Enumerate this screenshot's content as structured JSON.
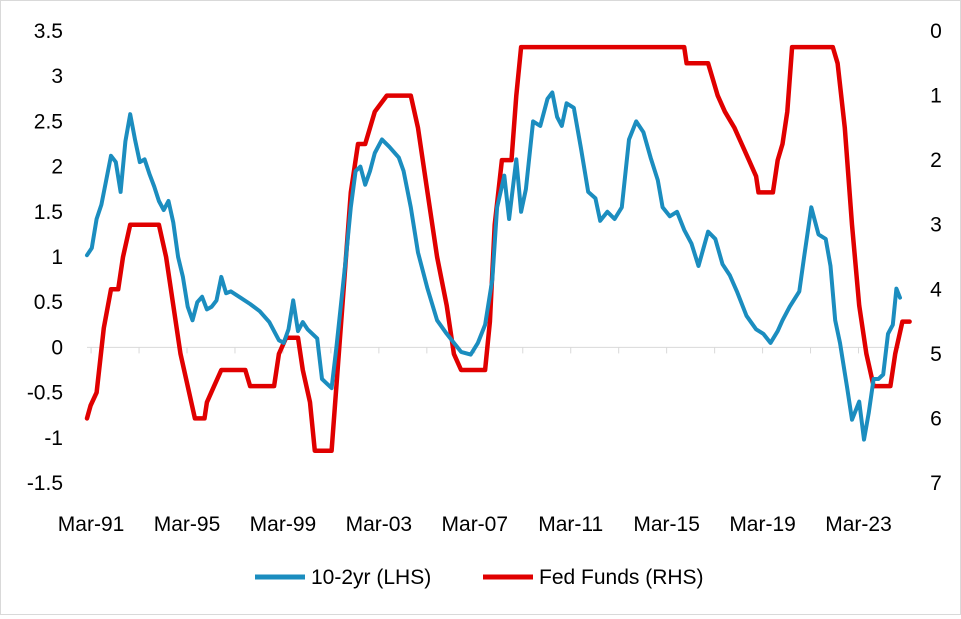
{
  "chart_data": {
    "type": "line",
    "title": "",
    "xlabel": "",
    "ylabel": "",
    "grid": false,
    "legend_position": "bottom",
    "x_tick_labels": [
      "Mar-91",
      "Mar-95",
      "Mar-99",
      "Mar-03",
      "Mar-07",
      "Mar-11",
      "Mar-15",
      "Mar-19",
      "Mar-23"
    ],
    "x_range": [
      1991.0,
      2024.9
    ],
    "left_axis": {
      "ylim": [
        -1.5,
        3.5
      ],
      "ticks": [
        "3.5",
        "3",
        "2.5",
        "2",
        "1.5",
        "1",
        "0.5",
        "0",
        "-0.5",
        "-1",
        "-1.5"
      ]
    },
    "right_axis": {
      "ylim": [
        0,
        7
      ],
      "inverted": true,
      "ticks": [
        "0",
        "1",
        "2",
        "3",
        "4",
        "5",
        "6",
        "7"
      ]
    },
    "series": [
      {
        "name": "10-2yr (LHS)",
        "axis": "left",
        "color": "#1B8DBF",
        "points": [
          [
            1991.0,
            1.02
          ],
          [
            1991.2,
            1.1
          ],
          [
            1991.4,
            1.42
          ],
          [
            1991.6,
            1.58
          ],
          [
            1991.8,
            1.85
          ],
          [
            1992.0,
            2.12
          ],
          [
            1992.2,
            2.05
          ],
          [
            1992.4,
            1.72
          ],
          [
            1992.6,
            2.28
          ],
          [
            1992.8,
            2.58
          ],
          [
            1993.0,
            2.3
          ],
          [
            1993.2,
            2.05
          ],
          [
            1993.4,
            2.08
          ],
          [
            1993.6,
            1.92
          ],
          [
            1993.8,
            1.78
          ],
          [
            1994.0,
            1.62
          ],
          [
            1994.2,
            1.52
          ],
          [
            1994.4,
            1.62
          ],
          [
            1994.6,
            1.38
          ],
          [
            1994.8,
            1.0
          ],
          [
            1995.0,
            0.78
          ],
          [
            1995.2,
            0.45
          ],
          [
            1995.4,
            0.3
          ],
          [
            1995.6,
            0.5
          ],
          [
            1995.8,
            0.56
          ],
          [
            1996.0,
            0.42
          ],
          [
            1996.2,
            0.45
          ],
          [
            1996.4,
            0.52
          ],
          [
            1996.6,
            0.78
          ],
          [
            1996.8,
            0.6
          ],
          [
            1997.0,
            0.62
          ],
          [
            1997.4,
            0.55
          ],
          [
            1997.8,
            0.48
          ],
          [
            1998.2,
            0.4
          ],
          [
            1998.6,
            0.28
          ],
          [
            1999.0,
            0.08
          ],
          [
            1999.2,
            0.05
          ],
          [
            1999.4,
            0.2
          ],
          [
            1999.6,
            0.52
          ],
          [
            1999.8,
            0.18
          ],
          [
            2000.0,
            0.28
          ],
          [
            2000.2,
            0.2
          ],
          [
            2000.6,
            0.1
          ],
          [
            2000.8,
            -0.35
          ],
          [
            2001.0,
            -0.4
          ],
          [
            2001.2,
            -0.45
          ],
          [
            2001.4,
            0.0
          ],
          [
            2001.6,
            0.5
          ],
          [
            2001.8,
            1.0
          ],
          [
            2002.0,
            1.55
          ],
          [
            2002.2,
            1.95
          ],
          [
            2002.4,
            2.0
          ],
          [
            2002.6,
            1.8
          ],
          [
            2002.8,
            1.95
          ],
          [
            2003.0,
            2.15
          ],
          [
            2003.3,
            2.3
          ],
          [
            2003.6,
            2.22
          ],
          [
            2004.0,
            2.1
          ],
          [
            2004.2,
            1.95
          ],
          [
            2004.5,
            1.55
          ],
          [
            2004.8,
            1.05
          ],
          [
            2005.2,
            0.65
          ],
          [
            2005.6,
            0.3
          ],
          [
            2006.0,
            0.15
          ],
          [
            2006.3,
            0.05
          ],
          [
            2006.6,
            -0.05
          ],
          [
            2007.0,
            -0.08
          ],
          [
            2007.3,
            0.05
          ],
          [
            2007.6,
            0.25
          ],
          [
            2007.9,
            0.75
          ],
          [
            2008.1,
            1.55
          ],
          [
            2008.4,
            1.9
          ],
          [
            2008.6,
            1.42
          ],
          [
            2008.9,
            2.08
          ],
          [
            2009.1,
            1.5
          ],
          [
            2009.3,
            1.75
          ],
          [
            2009.6,
            2.5
          ],
          [
            2009.9,
            2.45
          ],
          [
            2010.2,
            2.75
          ],
          [
            2010.4,
            2.82
          ],
          [
            2010.6,
            2.55
          ],
          [
            2010.8,
            2.45
          ],
          [
            2011.0,
            2.7
          ],
          [
            2011.3,
            2.65
          ],
          [
            2011.6,
            2.2
          ],
          [
            2011.9,
            1.72
          ],
          [
            2012.2,
            1.65
          ],
          [
            2012.4,
            1.4
          ],
          [
            2012.7,
            1.5
          ],
          [
            2013.0,
            1.42
          ],
          [
            2013.3,
            1.55
          ],
          [
            2013.6,
            2.3
          ],
          [
            2013.9,
            2.5
          ],
          [
            2014.2,
            2.38
          ],
          [
            2014.5,
            2.1
          ],
          [
            2014.8,
            1.85
          ],
          [
            2015.0,
            1.55
          ],
          [
            2015.3,
            1.45
          ],
          [
            2015.6,
            1.5
          ],
          [
            2015.9,
            1.3
          ],
          [
            2016.2,
            1.15
          ],
          [
            2016.5,
            0.9
          ],
          [
            2016.9,
            1.28
          ],
          [
            2017.2,
            1.2
          ],
          [
            2017.5,
            0.92
          ],
          [
            2017.8,
            0.8
          ],
          [
            2018.1,
            0.62
          ],
          [
            2018.5,
            0.35
          ],
          [
            2018.9,
            0.2
          ],
          [
            2019.2,
            0.15
          ],
          [
            2019.5,
            0.05
          ],
          [
            2019.8,
            0.18
          ],
          [
            2020.0,
            0.3
          ],
          [
            2020.3,
            0.45
          ],
          [
            2020.7,
            0.62
          ],
          [
            2020.9,
            1.0
          ],
          [
            2021.2,
            1.55
          ],
          [
            2021.5,
            1.25
          ],
          [
            2021.8,
            1.2
          ],
          [
            2022.0,
            0.9
          ],
          [
            2022.2,
            0.3
          ],
          [
            2022.4,
            0.05
          ],
          [
            2022.7,
            -0.45
          ],
          [
            2022.9,
            -0.8
          ],
          [
            2023.2,
            -0.6
          ],
          [
            2023.4,
            -1.02
          ],
          [
            2023.6,
            -0.72
          ],
          [
            2023.8,
            -0.35
          ],
          [
            2024.0,
            -0.35
          ],
          [
            2024.2,
            -0.3
          ],
          [
            2024.4,
            0.15
          ],
          [
            2024.6,
            0.25
          ],
          [
            2024.75,
            0.65
          ],
          [
            2024.9,
            0.55
          ]
        ]
      },
      {
        "name": "Fed Funds (RHS)",
        "axis": "right",
        "color": "#E00000",
        "points": [
          [
            1991.0,
            6.0
          ],
          [
            1991.15,
            5.8
          ],
          [
            1991.4,
            5.6
          ],
          [
            1991.7,
            4.6
          ],
          [
            1992.0,
            4.0
          ],
          [
            1992.3,
            4.0
          ],
          [
            1992.5,
            3.5
          ],
          [
            1992.8,
            3.0
          ],
          [
            1994.0,
            3.0
          ],
          [
            1994.3,
            3.5
          ],
          [
            1994.6,
            4.25
          ],
          [
            1994.9,
            5.0
          ],
          [
            1995.2,
            5.5
          ],
          [
            1995.5,
            6.0
          ],
          [
            1995.9,
            6.0
          ],
          [
            1996.0,
            5.75
          ],
          [
            1996.3,
            5.5
          ],
          [
            1996.6,
            5.25
          ],
          [
            1997.6,
            5.25
          ],
          [
            1997.8,
            5.5
          ],
          [
            1998.8,
            5.5
          ],
          [
            1999.0,
            5.0
          ],
          [
            1999.3,
            4.75
          ],
          [
            1999.8,
            4.75
          ],
          [
            2000.0,
            5.25
          ],
          [
            2000.3,
            5.75
          ],
          [
            2000.5,
            6.5
          ],
          [
            2001.2,
            6.5
          ],
          [
            2001.4,
            5.5
          ],
          [
            2001.7,
            4.0
          ],
          [
            2002.0,
            2.5
          ],
          [
            2002.3,
            1.75
          ],
          [
            2002.6,
            1.75
          ],
          [
            2003.0,
            1.25
          ],
          [
            2003.5,
            1.0
          ],
          [
            2004.5,
            1.0
          ],
          [
            2004.8,
            1.5
          ],
          [
            2005.2,
            2.5
          ],
          [
            2005.6,
            3.5
          ],
          [
            2006.0,
            4.25
          ],
          [
            2006.3,
            5.0
          ],
          [
            2006.6,
            5.25
          ],
          [
            2007.6,
            5.25
          ],
          [
            2007.8,
            4.5
          ],
          [
            2008.0,
            3.0
          ],
          [
            2008.3,
            2.0
          ],
          [
            2008.7,
            2.0
          ],
          [
            2008.9,
            1.0
          ],
          [
            2009.1,
            0.25
          ],
          [
            2015.9,
            0.25
          ],
          [
            2016.0,
            0.5
          ],
          [
            2016.9,
            0.5
          ],
          [
            2017.1,
            0.75
          ],
          [
            2017.3,
            1.0
          ],
          [
            2017.6,
            1.25
          ],
          [
            2018.0,
            1.5
          ],
          [
            2018.3,
            1.75
          ],
          [
            2018.6,
            2.0
          ],
          [
            2018.9,
            2.25
          ],
          [
            2019.0,
            2.5
          ],
          [
            2019.6,
            2.5
          ],
          [
            2019.8,
            2.0
          ],
          [
            2020.0,
            1.75
          ],
          [
            2020.2,
            1.25
          ],
          [
            2020.4,
            0.25
          ],
          [
            2022.1,
            0.25
          ],
          [
            2022.3,
            0.5
          ],
          [
            2022.6,
            1.5
          ],
          [
            2022.9,
            3.0
          ],
          [
            2023.2,
            4.25
          ],
          [
            2023.5,
            5.0
          ],
          [
            2023.8,
            5.5
          ],
          [
            2024.5,
            5.5
          ],
          [
            2024.7,
            5.0
          ],
          [
            2024.85,
            4.75
          ],
          [
            2025.0,
            4.5
          ],
          [
            2025.3,
            4.5
          ]
        ]
      }
    ]
  }
}
